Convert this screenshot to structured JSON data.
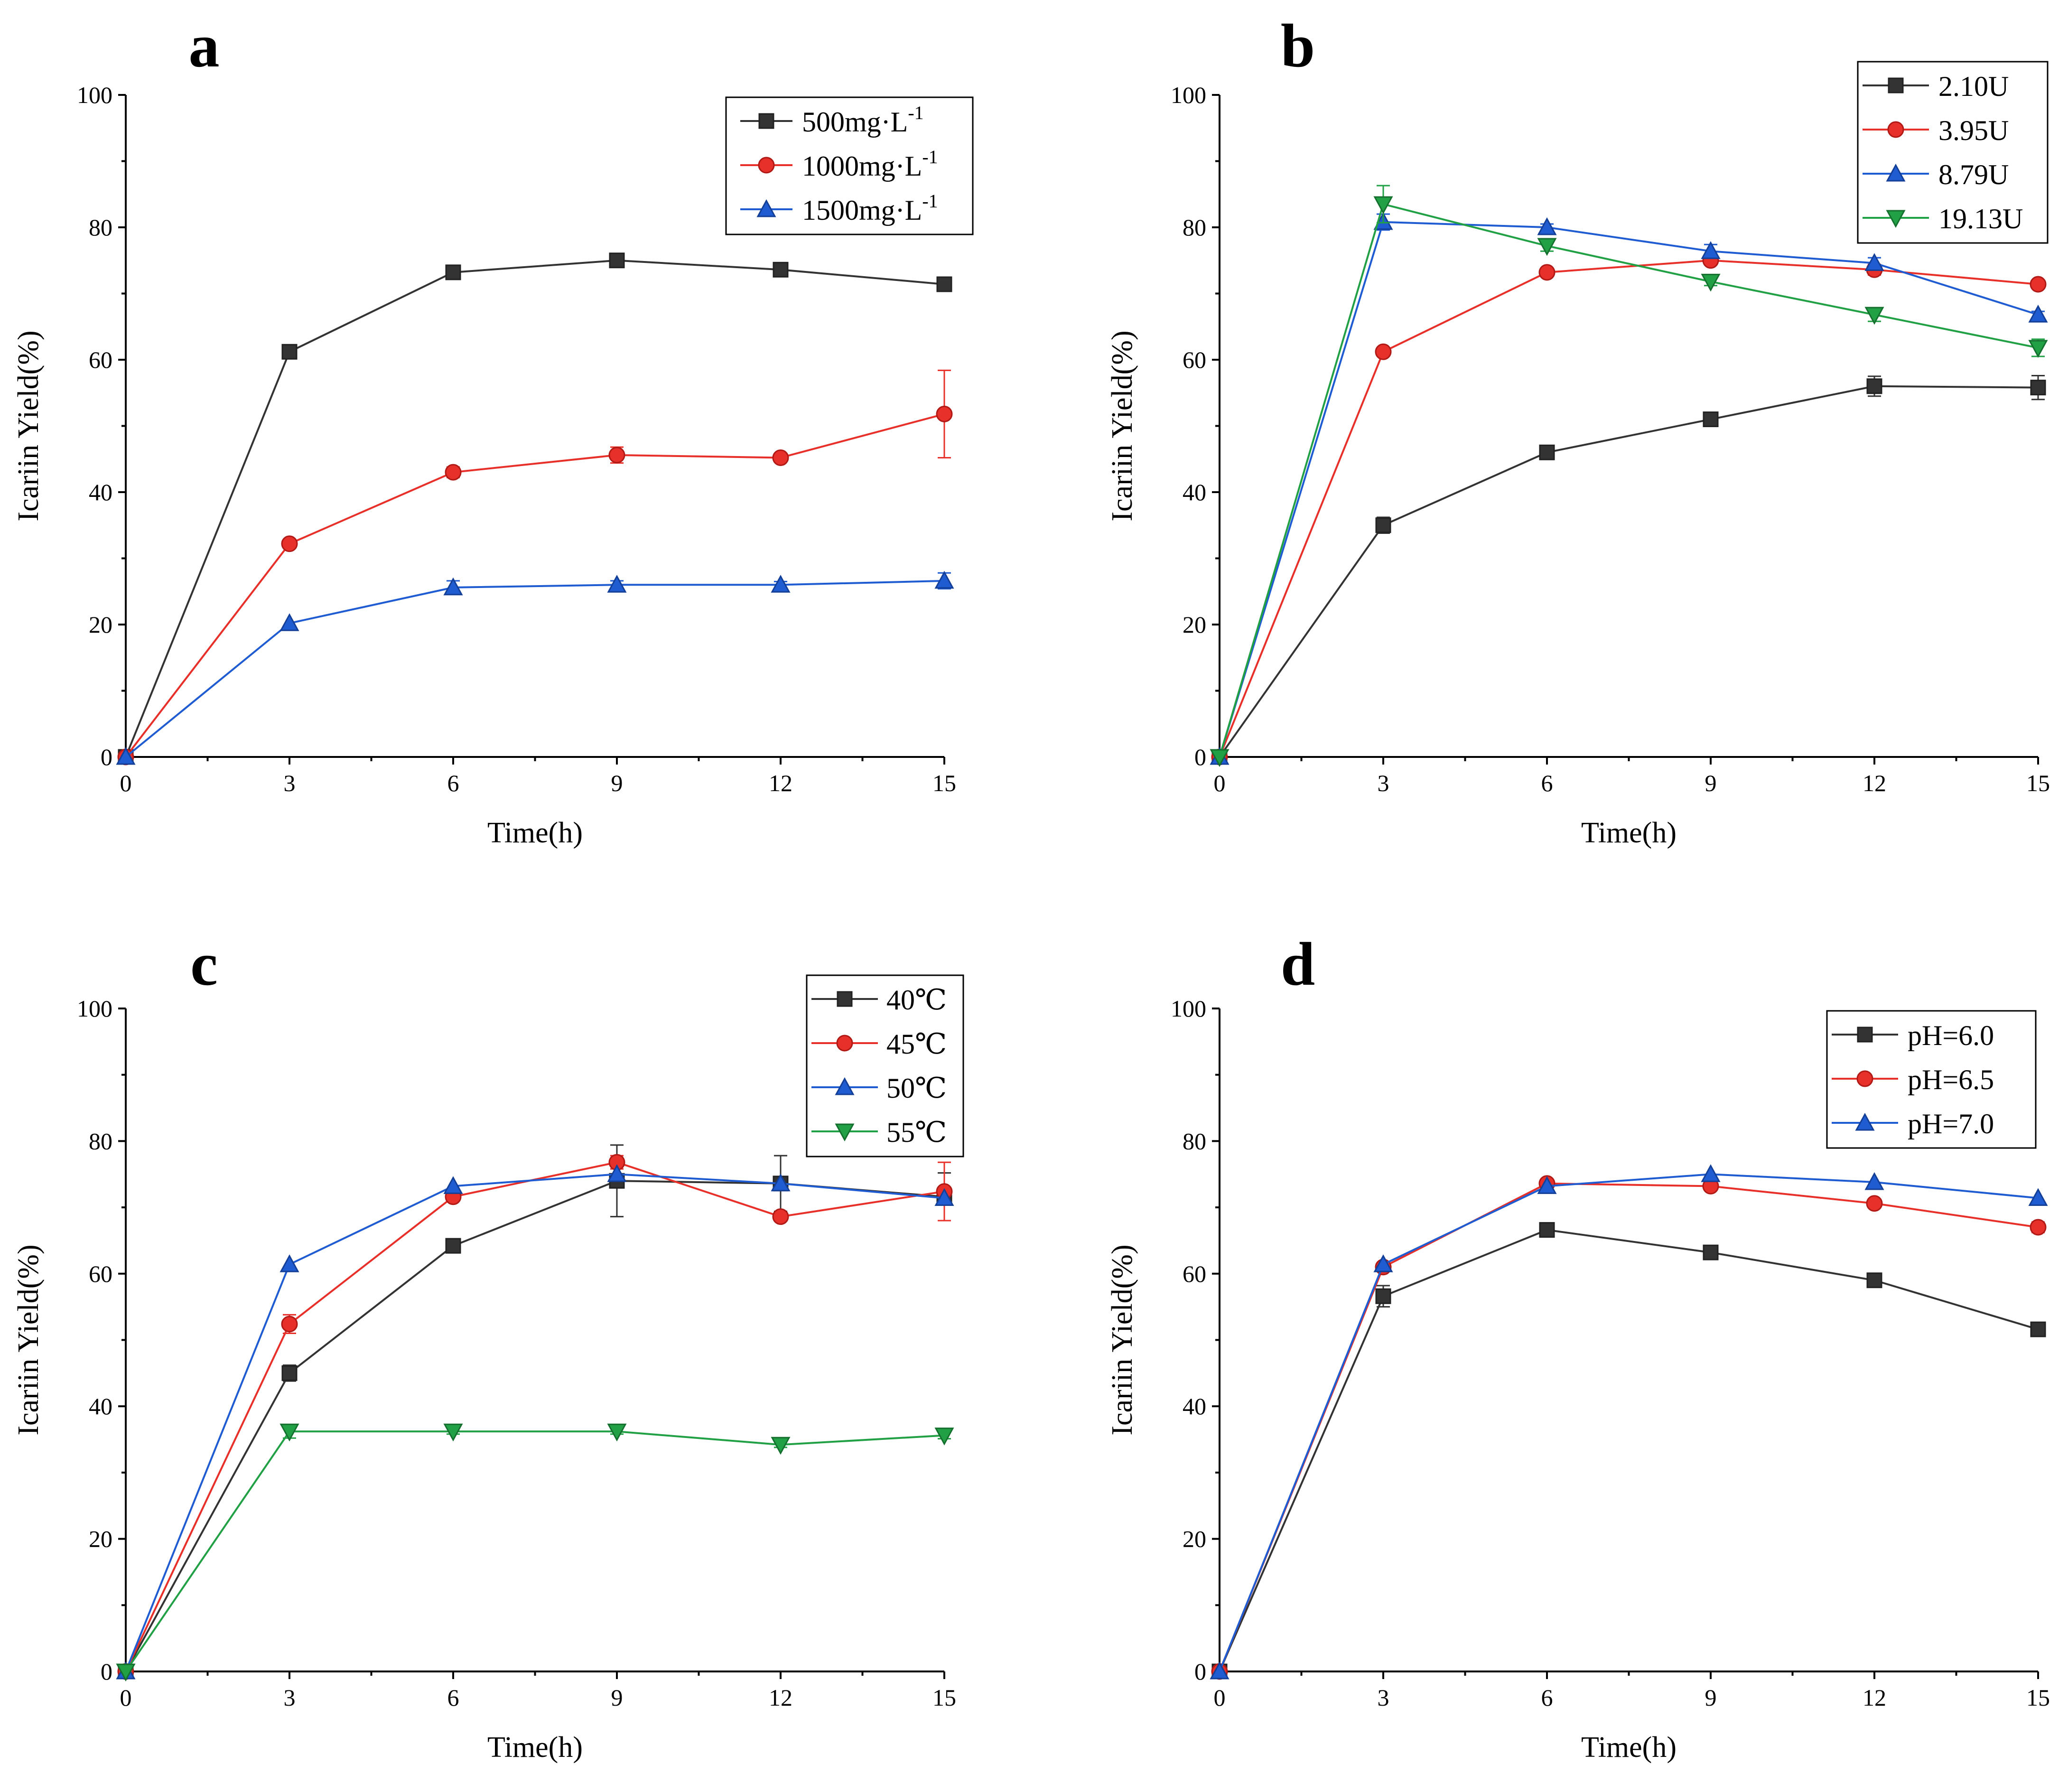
{
  "chart_data": [
    {
      "panel": "a",
      "type": "line",
      "xlabel": "Time(h)",
      "ylabel": "Icariin Yield(%)",
      "x": [
        0,
        3,
        6,
        9,
        12,
        15
      ],
      "xlim": [
        0,
        15
      ],
      "ylim": [
        0,
        100
      ],
      "xticks": [
        0,
        3,
        6,
        9,
        12,
        15
      ],
      "yticks": [
        0,
        20,
        40,
        60,
        80,
        100
      ],
      "legend_position": "top-right",
      "series": [
        {
          "name": "500mg·L-1",
          "label_base": "500mg·L",
          "label_sup": "-1",
          "color": "#333333",
          "marker": "square",
          "values": [
            0,
            61.2,
            73.2,
            75.0,
            73.6,
            71.4
          ],
          "errors": [
            0,
            0,
            0,
            0,
            0,
            0
          ]
        },
        {
          "name": "1000mg·L-1",
          "label_base": "1000mg·L",
          "label_sup": "-1",
          "color": "#e8302a",
          "marker": "circle",
          "values": [
            0,
            32.2,
            43.0,
            45.6,
            45.2,
            51.8
          ],
          "errors": [
            0,
            0,
            0.8,
            1.2,
            0.5,
            6.6
          ]
        },
        {
          "name": "1500mg·L-1",
          "label_base": "1500mg·L",
          "label_sup": "-1",
          "color": "#1f5bd1",
          "marker": "triangle",
          "values": [
            0,
            20.2,
            25.6,
            26.0,
            26.0,
            26.6
          ],
          "errors": [
            0,
            0,
            1.0,
            0.6,
            0.5,
            1.2
          ]
        }
      ]
    },
    {
      "panel": "b",
      "type": "line",
      "xlabel": "Time(h)",
      "ylabel": "Icariin Yield(%)",
      "x": [
        0,
        3,
        6,
        9,
        12,
        15
      ],
      "xlim": [
        0,
        15
      ],
      "ylim": [
        0,
        100
      ],
      "xticks": [
        0,
        3,
        6,
        9,
        12,
        15
      ],
      "yticks": [
        0,
        20,
        40,
        60,
        80,
        100
      ],
      "legend_position": "top-right",
      "series": [
        {
          "name": "2.10U",
          "label_base": "2.10U",
          "label_sup": "",
          "color": "#333333",
          "marker": "square",
          "values": [
            0,
            35.0,
            46.0,
            51.0,
            56.0,
            55.8
          ],
          "errors": [
            0,
            1.2,
            0.6,
            0.5,
            1.5,
            1.8
          ]
        },
        {
          "name": "3.95U",
          "label_base": "3.95U",
          "label_sup": "",
          "color": "#e8302a",
          "marker": "circle",
          "values": [
            0,
            61.2,
            73.2,
            75.0,
            73.6,
            71.4
          ],
          "errors": [
            0,
            0,
            0,
            0,
            0.8,
            0.6
          ]
        },
        {
          "name": "8.79U",
          "label_base": "8.79U",
          "label_sup": "",
          "color": "#1f5bd1",
          "marker": "triangle",
          "values": [
            0,
            80.8,
            80.0,
            76.4,
            74.6,
            66.8
          ],
          "errors": [
            0,
            1.2,
            0.5,
            1.0,
            0.8,
            0.5
          ]
        },
        {
          "name": "19.13U",
          "label_base": "19.13U",
          "label_sup": "",
          "color": "#22a045",
          "marker": "triangle-down",
          "values": [
            0,
            83.5,
            77.2,
            71.8,
            66.8,
            61.8
          ],
          "errors": [
            0,
            2.8,
            0.8,
            0.6,
            1.0,
            1.3
          ]
        }
      ]
    },
    {
      "panel": "c",
      "type": "line",
      "xlabel": "Time(h)",
      "ylabel": "Icariin Yield(%)",
      "x": [
        0,
        3,
        6,
        9,
        12,
        15
      ],
      "xlim": [
        0,
        15
      ],
      "ylim": [
        0,
        100
      ],
      "xticks": [
        0,
        3,
        6,
        9,
        12,
        15
      ],
      "yticks": [
        0,
        20,
        40,
        60,
        80,
        100
      ],
      "legend_position": "top-right",
      "series": [
        {
          "name": "40℃",
          "label_base": "40℃",
          "label_sup": "",
          "color": "#333333",
          "marker": "square",
          "values": [
            0,
            45.0,
            64.2,
            74.0,
            73.6,
            71.6
          ],
          "errors": [
            0,
            1.2,
            0.6,
            5.4,
            4.2,
            3.6
          ]
        },
        {
          "name": "45℃",
          "label_base": "45℃",
          "label_sup": "",
          "color": "#e8302a",
          "marker": "circle",
          "values": [
            0,
            52.4,
            71.6,
            76.8,
            68.6,
            72.4
          ],
          "errors": [
            0,
            1.4,
            0.6,
            1.0,
            0.5,
            4.4
          ]
        },
        {
          "name": "50℃",
          "label_base": "50℃",
          "label_sup": "",
          "color": "#1f5bd1",
          "marker": "triangle",
          "values": [
            0,
            61.4,
            73.2,
            75.0,
            73.6,
            71.4
          ],
          "errors": [
            0,
            0,
            0,
            0,
            0,
            0
          ]
        },
        {
          "name": "55℃",
          "label_base": "55℃",
          "label_sup": "",
          "color": "#22a045",
          "marker": "triangle-down",
          "values": [
            0,
            36.2,
            36.2,
            36.2,
            34.2,
            35.6
          ],
          "errors": [
            0,
            1.0,
            0.4,
            0.4,
            0.4,
            0.5
          ]
        }
      ]
    },
    {
      "panel": "d",
      "type": "line",
      "xlabel": "Time(h)",
      "ylabel": "Icariin Yield(%)",
      "x": [
        0,
        3,
        6,
        9,
        12,
        15
      ],
      "xlim": [
        0,
        15
      ],
      "ylim": [
        0,
        100
      ],
      "xticks": [
        0,
        3,
        6,
        9,
        12,
        15
      ],
      "yticks": [
        0,
        20,
        40,
        60,
        80,
        100
      ],
      "legend_position": "top-right",
      "series": [
        {
          "name": "pH=6.0",
          "label_base": "pH=6.0",
          "label_sup": "",
          "color": "#333333",
          "marker": "square",
          "values": [
            0,
            56.6,
            66.6,
            63.2,
            59.0,
            51.6
          ],
          "errors": [
            0,
            1.6,
            0.4,
            0.6,
            0.8,
            0.4
          ]
        },
        {
          "name": "pH=6.5",
          "label_base": "pH=6.5",
          "label_sup": "",
          "color": "#e8302a",
          "marker": "circle",
          "values": [
            0,
            61.0,
            73.6,
            73.2,
            70.6,
            67.0
          ],
          "errors": [
            0,
            0.5,
            0.4,
            0.4,
            0.4,
            0.8
          ]
        },
        {
          "name": "pH=7.0",
          "label_base": "pH=7.0",
          "label_sup": "",
          "color": "#1f5bd1",
          "marker": "triangle",
          "values": [
            0,
            61.4,
            73.2,
            75.0,
            73.8,
            71.4
          ],
          "errors": [
            0,
            0,
            0,
            0,
            0,
            0
          ]
        }
      ]
    }
  ]
}
